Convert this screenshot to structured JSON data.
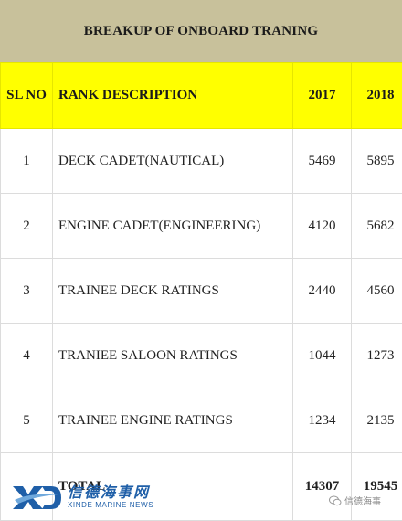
{
  "title": "BREAKUP OF ONBOARD TRANING",
  "table": {
    "headers": [
      "SL NO",
      "RANK DESCRIPTION",
      "2017",
      "2018"
    ],
    "rows": [
      {
        "sl": "1",
        "rank": "DECK CADET(NAUTICAL)",
        "y2017": "5469",
        "y2018": "5895"
      },
      {
        "sl": "2",
        "rank": "ENGINE CADET(ENGINEERING)",
        "y2017": "4120",
        "y2018": "5682"
      },
      {
        "sl": "3",
        "rank": "TRAINEE DECK RATINGS",
        "y2017": "2440",
        "y2018": "4560"
      },
      {
        "sl": "4",
        "rank": "TRANIEE SALOON RATINGS",
        "y2017": "1044",
        "y2018": "1273"
      },
      {
        "sl": "5",
        "rank": "TRAINEE ENGINE RATINGS",
        "y2017": "1234",
        "y2018": "2135"
      }
    ],
    "total": {
      "label": "TOTAL",
      "y2017": "14307",
      "y2018": "19545"
    }
  },
  "watermark": {
    "cn": "信德海事网",
    "en": "XINDE MARINE NEWS",
    "wechat": "信德海事"
  },
  "colors": {
    "title_bg": "#c8c19b",
    "header_bg": "#ffff00",
    "brand": "#1f5fa8"
  }
}
